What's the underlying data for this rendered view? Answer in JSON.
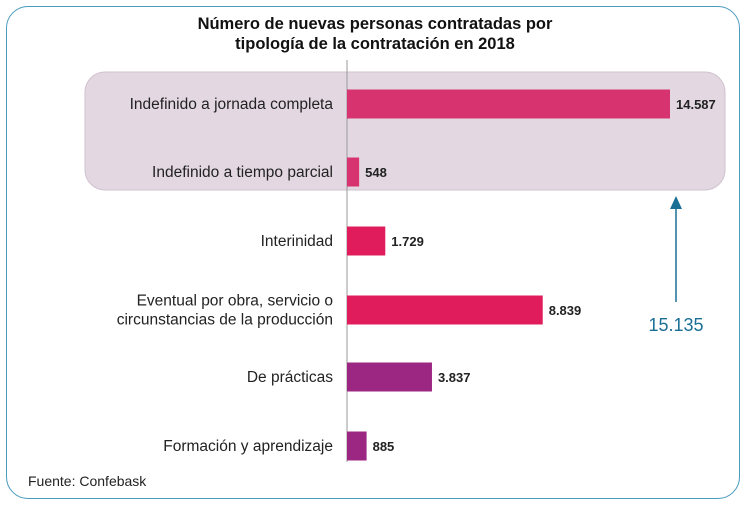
{
  "chart_data": {
    "type": "bar",
    "orientation": "horizontal",
    "title": [
      "Número de nuevas personas contratadas por",
      "tipología de la contratación en 2018"
    ],
    "categories": [
      [
        "Indefinido a jornada completa"
      ],
      [
        "Indefinido a tiempo parcial"
      ],
      [
        "Interinidad"
      ],
      [
        "Eventual por obra, servicio o",
        "circunstancias de la producción"
      ],
      [
        "De prácticas"
      ],
      [
        "Formación y aprendizaje"
      ]
    ],
    "values": [
      14587,
      548,
      1729,
      8839,
      3837,
      885
    ],
    "value_labels": [
      "14.587",
      "548",
      "1.729",
      "8.839",
      "3.837",
      "885"
    ],
    "bar_colors": [
      "#d6336f",
      "#d6336f",
      "#e01c5c",
      "#e01c5c",
      "#9c2783",
      "#9c2783"
    ],
    "highlight_group": {
      "members": [
        0,
        1
      ],
      "total_label": "15.135",
      "box_color": "#e3d8e2",
      "arrow_color": "#1a6f95"
    },
    "xlim": [
      0,
      14587
    ],
    "grid": false,
    "source": "Fuente: Confebask"
  }
}
